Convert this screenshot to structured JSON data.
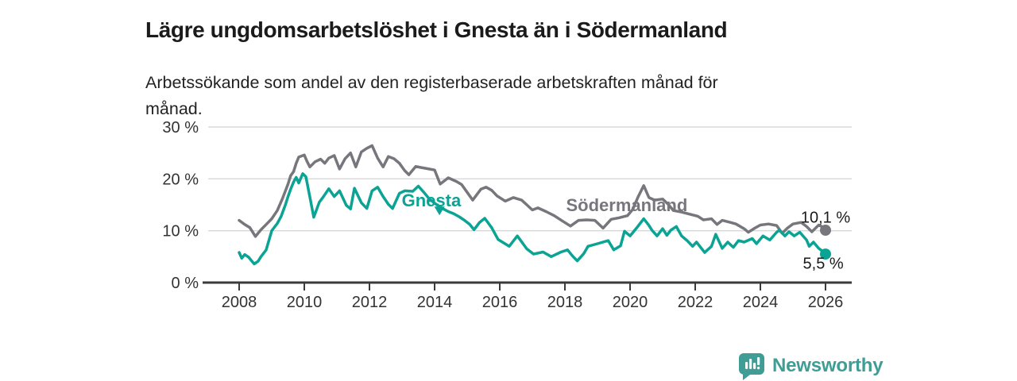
{
  "title": "Lägre ungdomsarbetslöshet i Gnesta än i Södermanland",
  "subtitle": "Arbetssökande som andel av den registerbaserade arbetskraften månad för månad.",
  "branding": {
    "logo_text": "Newsworthy"
  },
  "colors": {
    "gnesta": "#0aa394",
    "sodermanland": "#77767d",
    "grid": "#d8d8d8",
    "axis": "#3b3b3b",
    "tick_text": "#333333",
    "value_text": "#1a1a1a",
    "logo": "#3f9d95"
  },
  "chart_data": {
    "type": "line",
    "x_base": 2008,
    "xlim": [
      2007.55,
      2026.8
    ],
    "ylim": [
      0,
      30
    ],
    "grid": true,
    "x_ticks": [
      2008,
      2010,
      2012,
      2014,
      2016,
      2018,
      2020,
      2022,
      2024,
      2026
    ],
    "y_ticks": [
      {
        "value": 0,
        "label": "0 %"
      },
      {
        "value": 10,
        "label": "10 %"
      },
      {
        "value": 20,
        "label": "20 %"
      },
      {
        "value": 30,
        "label": "30 %"
      }
    ],
    "series": [
      {
        "name": "Södermanland",
        "color_key": "sodermanland",
        "end_label": "10,1 %",
        "end_value": 10.1,
        "points": [
          [
            2008.0,
            12.0
          ],
          [
            2008.17,
            11.2
          ],
          [
            2008.33,
            10.6
          ],
          [
            2008.5,
            8.9
          ],
          [
            2008.67,
            10.2
          ],
          [
            2008.83,
            11.2
          ],
          [
            2009.0,
            12.3
          ],
          [
            2009.17,
            13.9
          ],
          [
            2009.33,
            16.2
          ],
          [
            2009.5,
            19.0
          ],
          [
            2009.58,
            20.6
          ],
          [
            2009.67,
            21.4
          ],
          [
            2009.75,
            23.0
          ],
          [
            2009.83,
            24.2
          ],
          [
            2010.0,
            24.6
          ],
          [
            2010.08,
            23.4
          ],
          [
            2010.17,
            22.3
          ],
          [
            2010.33,
            23.3
          ],
          [
            2010.5,
            23.8
          ],
          [
            2010.63,
            23.0
          ],
          [
            2010.75,
            24.0
          ],
          [
            2010.92,
            24.5
          ],
          [
            2011.08,
            21.9
          ],
          [
            2011.25,
            23.9
          ],
          [
            2011.42,
            25.0
          ],
          [
            2011.58,
            22.3
          ],
          [
            2011.75,
            25.2
          ],
          [
            2011.92,
            25.9
          ],
          [
            2012.08,
            26.4
          ],
          [
            2012.25,
            24.0
          ],
          [
            2012.42,
            22.3
          ],
          [
            2012.58,
            24.3
          ],
          [
            2012.75,
            23.9
          ],
          [
            2012.92,
            23.0
          ],
          [
            2013.08,
            21.6
          ],
          [
            2013.21,
            20.8
          ],
          [
            2013.42,
            22.4
          ],
          [
            2013.58,
            22.2
          ],
          [
            2013.83,
            21.9
          ],
          [
            2014.0,
            21.7
          ],
          [
            2014.17,
            19.0
          ],
          [
            2014.42,
            20.2
          ],
          [
            2014.67,
            19.5
          ],
          [
            2014.83,
            18.9
          ],
          [
            2015.0,
            17.4
          ],
          [
            2015.17,
            15.9
          ],
          [
            2015.42,
            18.0
          ],
          [
            2015.58,
            18.4
          ],
          [
            2015.75,
            17.8
          ],
          [
            2015.92,
            16.7
          ],
          [
            2016.17,
            15.7
          ],
          [
            2016.42,
            16.4
          ],
          [
            2016.67,
            15.9
          ],
          [
            2016.83,
            15.0
          ],
          [
            2017.0,
            14.0
          ],
          [
            2017.17,
            14.4
          ],
          [
            2017.42,
            13.7
          ],
          [
            2017.67,
            12.9
          ],
          [
            2017.92,
            11.9
          ],
          [
            2018.17,
            10.9
          ],
          [
            2018.42,
            12.0
          ],
          [
            2018.67,
            12.1
          ],
          [
            2018.92,
            12.0
          ],
          [
            2019.17,
            10.5
          ],
          [
            2019.42,
            12.2
          ],
          [
            2019.67,
            12.5
          ],
          [
            2019.92,
            12.9
          ],
          [
            2020.08,
            14.1
          ],
          [
            2020.25,
            16.6
          ],
          [
            2020.42,
            18.7
          ],
          [
            2020.58,
            16.4
          ],
          [
            2020.75,
            15.9
          ],
          [
            2021.0,
            16.1
          ],
          [
            2021.17,
            15.1
          ],
          [
            2021.33,
            13.9
          ],
          [
            2021.58,
            13.6
          ],
          [
            2021.83,
            13.2
          ],
          [
            2022.08,
            12.8
          ],
          [
            2022.25,
            12.1
          ],
          [
            2022.5,
            12.3
          ],
          [
            2022.67,
            11.2
          ],
          [
            2022.83,
            12.0
          ],
          [
            2023.08,
            11.6
          ],
          [
            2023.25,
            11.3
          ],
          [
            2023.5,
            10.4
          ],
          [
            2023.63,
            9.7
          ],
          [
            2023.83,
            10.5
          ],
          [
            2024.0,
            11.1
          ],
          [
            2024.25,
            11.3
          ],
          [
            2024.5,
            11.0
          ],
          [
            2024.67,
            9.5
          ],
          [
            2024.83,
            10.5
          ],
          [
            2025.0,
            11.3
          ],
          [
            2025.25,
            11.6
          ],
          [
            2025.42,
            10.8
          ],
          [
            2025.58,
            9.8
          ],
          [
            2025.79,
            11.1
          ],
          [
            2025.92,
            10.7
          ],
          [
            2026.0,
            10.1
          ]
        ]
      },
      {
        "name": "Gnesta",
        "color_key": "gnesta",
        "end_label": "5,5 %",
        "end_value": 5.5,
        "points": [
          [
            2008.0,
            5.8
          ],
          [
            2008.08,
            4.7
          ],
          [
            2008.17,
            5.4
          ],
          [
            2008.29,
            4.9
          ],
          [
            2008.46,
            3.6
          ],
          [
            2008.58,
            4.1
          ],
          [
            2008.67,
            5.0
          ],
          [
            2008.83,
            6.3
          ],
          [
            2009.0,
            10.0
          ],
          [
            2009.17,
            11.4
          ],
          [
            2009.29,
            12.8
          ],
          [
            2009.42,
            15.0
          ],
          [
            2009.5,
            16.6
          ],
          [
            2009.58,
            18.0
          ],
          [
            2009.67,
            19.4
          ],
          [
            2009.75,
            20.3
          ],
          [
            2009.83,
            19.2
          ],
          [
            2009.95,
            21.0
          ],
          [
            2010.05,
            20.4
          ],
          [
            2010.17,
            16.5
          ],
          [
            2010.29,
            12.6
          ],
          [
            2010.46,
            15.5
          ],
          [
            2010.58,
            16.5
          ],
          [
            2010.75,
            18.1
          ],
          [
            2010.92,
            16.6
          ],
          [
            2011.08,
            17.7
          ],
          [
            2011.29,
            14.9
          ],
          [
            2011.42,
            14.2
          ],
          [
            2011.54,
            18.2
          ],
          [
            2011.75,
            15.4
          ],
          [
            2011.92,
            14.3
          ],
          [
            2012.08,
            17.7
          ],
          [
            2012.25,
            18.4
          ],
          [
            2012.42,
            16.6
          ],
          [
            2012.58,
            15.1
          ],
          [
            2012.71,
            14.3
          ],
          [
            2012.92,
            17.2
          ],
          [
            2013.08,
            17.7
          ],
          [
            2013.33,
            17.6
          ],
          [
            2013.5,
            18.6
          ],
          [
            2013.67,
            17.4
          ],
          [
            2013.83,
            16.2
          ],
          [
            2014.0,
            15.3
          ],
          [
            2014.21,
            14.4
          ],
          [
            2014.42,
            13.7
          ],
          [
            2014.58,
            13.3
          ],
          [
            2014.75,
            12.7
          ],
          [
            2014.92,
            12.0
          ],
          [
            2015.08,
            11.2
          ],
          [
            2015.21,
            10.2
          ],
          [
            2015.38,
            11.6
          ],
          [
            2015.54,
            12.4
          ],
          [
            2015.75,
            10.6
          ],
          [
            2015.95,
            8.3
          ],
          [
            2016.13,
            7.6
          ],
          [
            2016.29,
            7.0
          ],
          [
            2016.54,
            9.0
          ],
          [
            2016.83,
            6.5
          ],
          [
            2017.04,
            5.5
          ],
          [
            2017.33,
            5.9
          ],
          [
            2017.58,
            5.0
          ],
          [
            2017.88,
            5.9
          ],
          [
            2018.08,
            6.3
          ],
          [
            2018.25,
            5.0
          ],
          [
            2018.38,
            4.2
          ],
          [
            2018.58,
            5.6
          ],
          [
            2018.71,
            7.0
          ],
          [
            2019.0,
            7.5
          ],
          [
            2019.33,
            8.1
          ],
          [
            2019.5,
            6.3
          ],
          [
            2019.71,
            7.1
          ],
          [
            2019.83,
            9.9
          ],
          [
            2020.0,
            9.0
          ],
          [
            2020.21,
            10.6
          ],
          [
            2020.42,
            12.3
          ],
          [
            2020.58,
            11.0
          ],
          [
            2020.67,
            10.1
          ],
          [
            2020.83,
            9.0
          ],
          [
            2021.0,
            10.4
          ],
          [
            2021.13,
            9.1
          ],
          [
            2021.25,
            10.1
          ],
          [
            2021.42,
            10.8
          ],
          [
            2021.58,
            9.0
          ],
          [
            2021.75,
            8.1
          ],
          [
            2021.92,
            7.0
          ],
          [
            2022.04,
            7.8
          ],
          [
            2022.29,
            5.8
          ],
          [
            2022.5,
            7.0
          ],
          [
            2022.63,
            9.3
          ],
          [
            2022.83,
            6.6
          ],
          [
            2023.0,
            7.8
          ],
          [
            2023.17,
            6.8
          ],
          [
            2023.33,
            8.1
          ],
          [
            2023.5,
            7.8
          ],
          [
            2023.75,
            8.5
          ],
          [
            2023.88,
            7.5
          ],
          [
            2024.08,
            9.0
          ],
          [
            2024.29,
            8.2
          ],
          [
            2024.5,
            9.7
          ],
          [
            2024.58,
            10.1
          ],
          [
            2024.75,
            9.0
          ],
          [
            2024.88,
            9.8
          ],
          [
            2025.04,
            9.0
          ],
          [
            2025.21,
            9.7
          ],
          [
            2025.42,
            8.2
          ],
          [
            2025.5,
            7.0
          ],
          [
            2025.63,
            7.8
          ],
          [
            2025.79,
            6.6
          ],
          [
            2025.92,
            6.0
          ],
          [
            2026.0,
            5.5
          ]
        ]
      }
    ],
    "annotations": [
      {
        "text": "Gnesta",
        "x": 2013.9,
        "y": 15.6,
        "type": "series-label",
        "color": "teal"
      },
      {
        "text": "Södermanland",
        "x": 2019.9,
        "y": 14.7,
        "type": "series-label",
        "color": "gray"
      },
      {
        "text": "10,1 %",
        "x": 2026.0,
        "y": 12.4,
        "type": "value-label",
        "color": "dark"
      },
      {
        "text": "5,5 %",
        "x": 2025.93,
        "y": 3.5,
        "type": "value-label",
        "color": "dark"
      }
    ],
    "marker": {
      "shape": "triangle-down",
      "x": 2014.15,
      "y": 13.9,
      "color": "teal"
    }
  }
}
